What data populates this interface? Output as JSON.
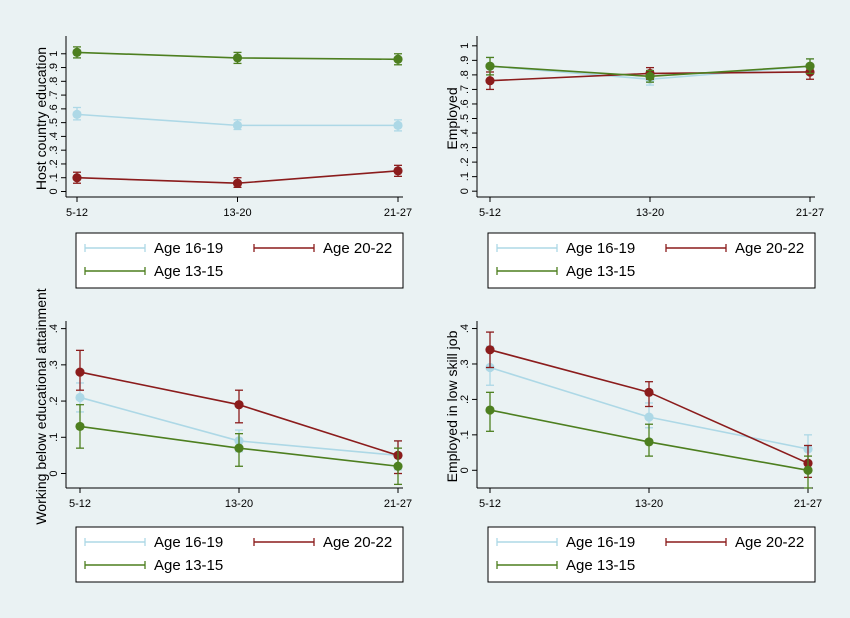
{
  "colors": {
    "age_16_19": "#add8e6",
    "age_20_22": "#8b1c1c",
    "age_13_15": "#4d7f1f",
    "background": "#eaf2f3"
  },
  "chart_data": [
    {
      "type": "line",
      "ylabel": "Host country education",
      "categories": [
        "5-12",
        "13-20",
        "21-27"
      ],
      "yticks": [
        "0",
        ".1",
        ".2",
        ".3",
        ".4",
        ".5",
        ".6",
        ".7",
        ".8",
        ".9",
        "1"
      ],
      "ylim": [
        -0.04,
        1.1
      ],
      "legend": [
        "Age 16-19",
        "Age 20-22",
        "Age 13-15"
      ],
      "series": [
        {
          "name": "Age 16-19",
          "color": "#add8e6",
          "values": [
            0.56,
            0.48,
            0.48
          ],
          "ci": [
            [
              0.52,
              0.61
            ],
            [
              0.45,
              0.52
            ],
            [
              0.44,
              0.52
            ]
          ]
        },
        {
          "name": "Age 20-22",
          "color": "#8b1c1c",
          "values": [
            0.1,
            0.06,
            0.15
          ],
          "ci": [
            [
              0.06,
              0.14
            ],
            [
              0.03,
              0.1
            ],
            [
              0.11,
              0.19
            ]
          ]
        },
        {
          "name": "Age 13-15",
          "color": "#4d7f1f",
          "values": [
            1.01,
            0.97,
            0.96
          ],
          "ci": [
            [
              0.97,
              1.05
            ],
            [
              0.93,
              1.01
            ],
            [
              0.92,
              1.0
            ]
          ]
        }
      ]
    },
    {
      "type": "line",
      "ylabel": "Employed",
      "categories": [
        "5-12",
        "13-20",
        "21-27"
      ],
      "yticks": [
        "0",
        ".1",
        ".2",
        ".3",
        ".4",
        ".5",
        ".6",
        ".7",
        ".8",
        ".9",
        "1"
      ],
      "ylim": [
        -0.04,
        1.04
      ],
      "legend": [
        "Age 16-19",
        "Age 20-22",
        "Age 13-15"
      ],
      "series": [
        {
          "name": "Age 16-19",
          "color": "#add8e6",
          "values": [
            0.86,
            0.77,
            0.86
          ],
          "ci": [
            [
              0.8,
              0.92
            ],
            [
              0.73,
              0.81
            ],
            [
              0.81,
              0.91
            ]
          ]
        },
        {
          "name": "Age 20-22",
          "color": "#8b1c1c",
          "values": [
            0.76,
            0.81,
            0.82
          ],
          "ci": [
            [
              0.7,
              0.82
            ],
            [
              0.77,
              0.85
            ],
            [
              0.77,
              0.87
            ]
          ]
        },
        {
          "name": "Age 13-15",
          "color": "#4d7f1f",
          "values": [
            0.86,
            0.79,
            0.86
          ],
          "ci": [
            [
              0.8,
              0.92
            ],
            [
              0.75,
              0.83
            ],
            [
              0.81,
              0.91
            ]
          ]
        }
      ]
    },
    {
      "type": "line",
      "ylabel": "Working below educational attainment",
      "categories": [
        "5-12",
        "13-20",
        "21-27"
      ],
      "yticks": [
        "0",
        ".1",
        ".2",
        ".3",
        ".4"
      ],
      "ylim": [
        -0.04,
        0.41
      ],
      "legend": [
        "Age 16-19",
        "Age 20-22",
        "Age 13-15"
      ],
      "series": [
        {
          "name": "Age 16-19",
          "color": "#add8e6",
          "values": [
            0.21,
            0.09,
            0.05
          ],
          "ci": [
            [
              0.17,
              0.25
            ],
            [
              0.06,
              0.12
            ],
            [
              0.01,
              0.09
            ]
          ]
        },
        {
          "name": "Age 20-22",
          "color": "#8b1c1c",
          "values": [
            0.28,
            0.19,
            0.05
          ],
          "ci": [
            [
              0.23,
              0.34
            ],
            [
              0.14,
              0.23
            ],
            [
              0.0,
              0.09
            ]
          ]
        },
        {
          "name": "Age 13-15",
          "color": "#4d7f1f",
          "values": [
            0.13,
            0.07,
            0.02
          ],
          "ci": [
            [
              0.07,
              0.19
            ],
            [
              0.02,
              0.11
            ],
            [
              -0.03,
              0.07
            ]
          ]
        }
      ]
    },
    {
      "type": "line",
      "ylabel": "Employed in low skill job",
      "categories": [
        "5-12",
        "13-20",
        "21-27"
      ],
      "yticks": [
        "0",
        ".1",
        ".2",
        ".3",
        ".4"
      ],
      "ylim": [
        -0.05,
        0.41
      ],
      "legend": [
        "Age 16-19",
        "Age 20-22",
        "Age 13-15"
      ],
      "series": [
        {
          "name": "Age 16-19",
          "color": "#add8e6",
          "values": [
            0.29,
            0.15,
            0.06
          ],
          "ci": [
            [
              0.24,
              0.35
            ],
            [
              0.12,
              0.19
            ],
            [
              0.02,
              0.1
            ]
          ]
        },
        {
          "name": "Age 20-22",
          "color": "#8b1c1c",
          "values": [
            0.34,
            0.22,
            0.02
          ],
          "ci": [
            [
              0.29,
              0.39
            ],
            [
              0.18,
              0.25
            ],
            [
              -0.02,
              0.07
            ]
          ]
        },
        {
          "name": "Age 13-15",
          "color": "#4d7f1f",
          "values": [
            0.17,
            0.08,
            0.0
          ],
          "ci": [
            [
              0.11,
              0.22
            ],
            [
              0.04,
              0.13
            ],
            [
              -0.05,
              0.04
            ]
          ]
        }
      ]
    }
  ]
}
